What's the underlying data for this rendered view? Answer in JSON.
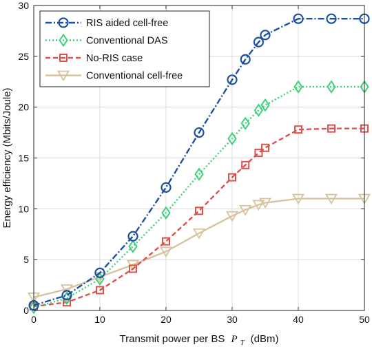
{
  "chart_data": {
    "type": "line",
    "title": "",
    "xlabel": "Transmit power per BS",
    "xlabel_symbol": "P",
    "xlabel_subscript": "T",
    "xlabel_unit": "(dBm)",
    "ylabel": "Energy efficiency (Mbits/Joule)",
    "xlim": [
      0,
      50
    ],
    "ylim": [
      0,
      30
    ],
    "xticks": [
      0,
      10,
      20,
      30,
      40,
      50
    ],
    "yticks": [
      0,
      5,
      10,
      15,
      20,
      25,
      30
    ],
    "grid": true,
    "legend_position": "top-left",
    "series": [
      {
        "name": "RIS aided cell-free",
        "color": "#1f4fa3",
        "line_style": "dash-dot",
        "marker": "circle",
        "x": [
          0,
          5,
          10,
          15,
          20,
          25,
          30,
          32,
          34,
          35,
          40,
          45,
          50
        ],
        "y": [
          0.5,
          1.5,
          3.7,
          7.3,
          12.1,
          17.5,
          22.7,
          24.7,
          26.4,
          27.1,
          28.7,
          28.7,
          28.7
        ]
      },
      {
        "name": "Conventional DAS",
        "color": "#3fd07a",
        "line_style": "dotted",
        "marker": "diamond",
        "x": [
          0,
          5,
          10,
          15,
          20,
          25,
          30,
          32,
          34,
          35,
          40,
          45,
          50
        ],
        "y": [
          0.3,
          1.2,
          3.1,
          6.3,
          9.6,
          13.4,
          16.9,
          18.4,
          19.7,
          20.2,
          22.0,
          22.0,
          22.0
        ]
      },
      {
        "name": "No-RIS case",
        "color": "#e0504a",
        "line_style": "dashed",
        "marker": "square",
        "x": [
          0,
          5,
          10,
          15,
          20,
          25,
          30,
          32,
          34,
          35,
          40,
          45,
          50
        ],
        "y": [
          0.4,
          0.8,
          2.0,
          4.1,
          6.8,
          9.8,
          13.1,
          14.3,
          15.5,
          16.0,
          17.8,
          17.9,
          17.9
        ]
      },
      {
        "name": "Conventional cell-free",
        "color": "#d8c3a0",
        "line_style": "solid",
        "marker": "triangle-down",
        "x": [
          0,
          5,
          10,
          15,
          20,
          25,
          30,
          32,
          34,
          35,
          40,
          45,
          50
        ],
        "y": [
          1.3,
          2.1,
          3.3,
          4.5,
          5.8,
          7.6,
          9.3,
          9.9,
          10.4,
          10.6,
          11.0,
          11.0,
          11.0
        ]
      }
    ]
  }
}
